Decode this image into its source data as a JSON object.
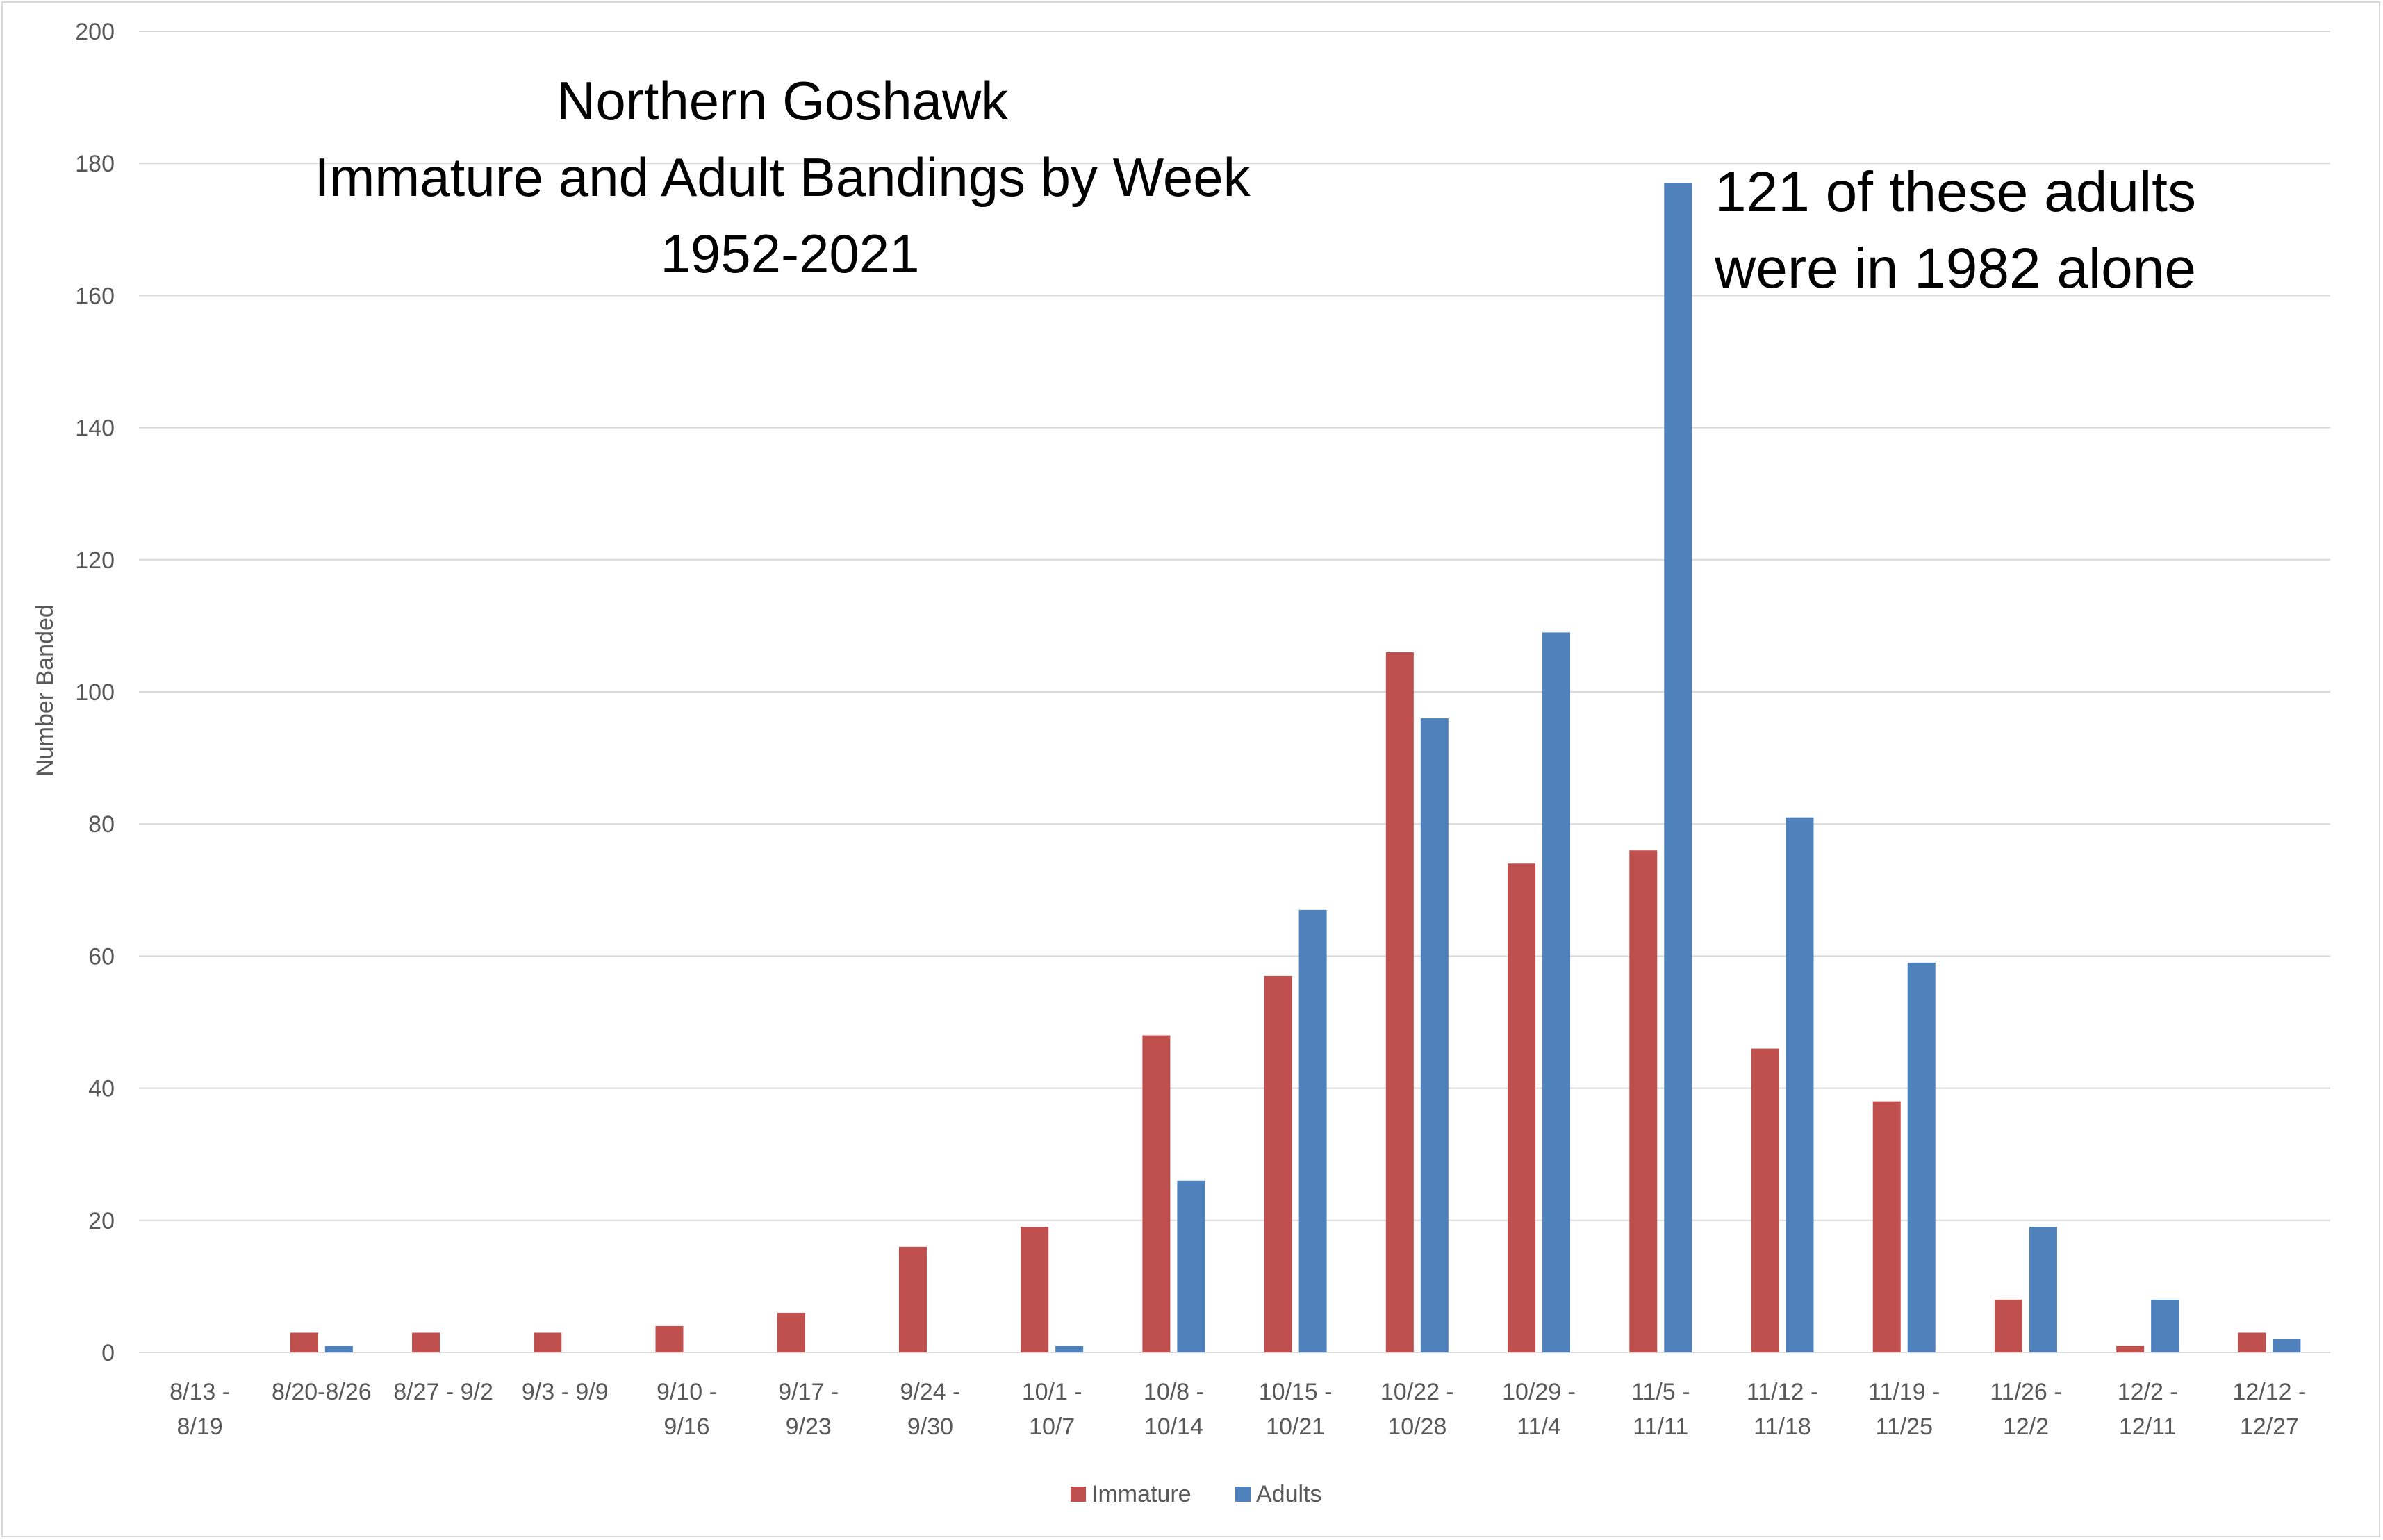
{
  "chart_data": {
    "type": "bar",
    "title_lines": [
      "Northern Goshawk",
      "Immature and Adult Bandings by Week",
      "1952-2021"
    ],
    "annotation_lines": [
      "121 of these adults",
      "were in 1982 alone"
    ],
    "ylabel": "Number Banded",
    "xlabel": "",
    "ylim": [
      0,
      200
    ],
    "yticks": [
      0,
      20,
      40,
      60,
      80,
      100,
      120,
      140,
      160,
      180,
      200
    ],
    "grid": true,
    "legend_position": "bottom",
    "categories": [
      "8/13 - 8/19",
      "8/20-8/26",
      "8/27 - 9/2",
      "9/3 - 9/9",
      "9/10 - 9/16",
      "9/17 - 9/23",
      "9/24 - 9/30",
      "10/1 - 10/7",
      "10/8 - 10/14",
      "10/15 - 10/21",
      "10/22 - 10/28",
      "10/29 - 11/4",
      "11/5 - 11/11",
      "11/12 - 11/18",
      "11/19 - 11/25",
      "11/26 - 12/2",
      "12/2 - 12/11",
      "12/12 - 12/27"
    ],
    "category_label_lines": [
      [
        "8/13 -",
        "8/19"
      ],
      [
        "8/20-8/26"
      ],
      [
        "8/27 - 9/2"
      ],
      [
        "9/3 - 9/9"
      ],
      [
        "9/10 -",
        "9/16"
      ],
      [
        "9/17 -",
        "9/23"
      ],
      [
        "9/24 -",
        "9/30"
      ],
      [
        "10/1 -",
        "10/7"
      ],
      [
        "10/8 -",
        "10/14"
      ],
      [
        "10/15 -",
        "10/21"
      ],
      [
        "10/22 -",
        "10/28"
      ],
      [
        "10/29 -",
        "11/4"
      ],
      [
        "11/5 -",
        "11/11"
      ],
      [
        "11/12 -",
        "11/18"
      ],
      [
        "11/19 -",
        "11/25"
      ],
      [
        "11/26 -",
        "12/2"
      ],
      [
        "12/2 -",
        "12/11"
      ],
      [
        "12/12 -",
        "12/27"
      ]
    ],
    "series": [
      {
        "name": "Immature",
        "color": "#c0504d",
        "values": [
          0,
          3,
          3,
          3,
          4,
          6,
          16,
          19,
          48,
          57,
          106,
          74,
          76,
          46,
          38,
          8,
          1,
          3
        ]
      },
      {
        "name": "Adults",
        "color": "#4f81bd",
        "values": [
          0,
          1,
          0,
          0,
          0,
          0,
          0,
          1,
          26,
          67,
          96,
          109,
          177,
          81,
          59,
          19,
          8,
          2
        ]
      }
    ],
    "colors": {
      "grid": "#d9d9d9",
      "tick_text": "#595959",
      "title_text": "#000000"
    }
  }
}
